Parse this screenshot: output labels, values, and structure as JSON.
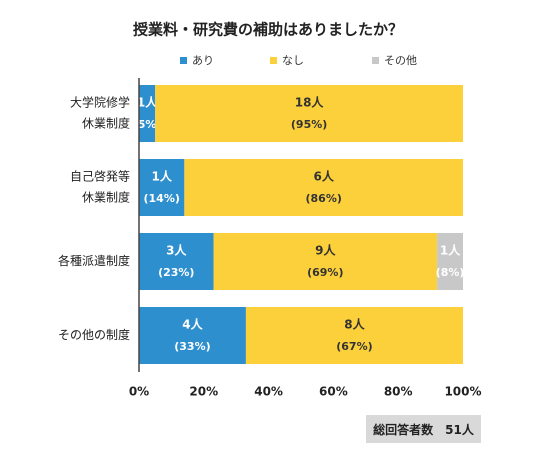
{
  "chart_data": {
    "type": "bar",
    "orientation": "horizontal",
    "stacked": true,
    "title": "授業料・研究費の補助はありましたか？",
    "categories": [
      "大学院修学\n休業制度",
      "自己啓発等\n休業制度",
      "各種派遣制度",
      "その他の制度"
    ],
    "series": [
      {
        "name": "あり",
        "color": "#2e8fcf",
        "counts": [
          "1人",
          "1人",
          "3人",
          "4人"
        ],
        "percent_labels": [
          "(5%)",
          "(14%)",
          "(23%)",
          "(33%)"
        ],
        "values": [
          5,
          14,
          23,
          33
        ]
      },
      {
        "name": "なし",
        "color": "#fcd03a",
        "counts": [
          "18人",
          "6人",
          "9人",
          "8人"
        ],
        "percent_labels": [
          "(95%)",
          "(86%)",
          "(69%)",
          "(67%)"
        ],
        "values": [
          95,
          86,
          69,
          67
        ]
      },
      {
        "name": "その他",
        "color": "#c8c8c8",
        "counts": [
          "",
          "",
          "1人",
          ""
        ],
        "percent_labels": [
          "",
          "",
          "(8%)",
          ""
        ],
        "values": [
          0,
          0,
          8,
          0
        ]
      }
    ],
    "xticks": [
      "0%",
      "20%",
      "40%",
      "60%",
      "80%",
      "100%"
    ],
    "xlim": [
      0,
      100
    ],
    "legend": "top",
    "grid": false
  },
  "footer": {
    "label": "総回答者数",
    "value": "51人"
  }
}
